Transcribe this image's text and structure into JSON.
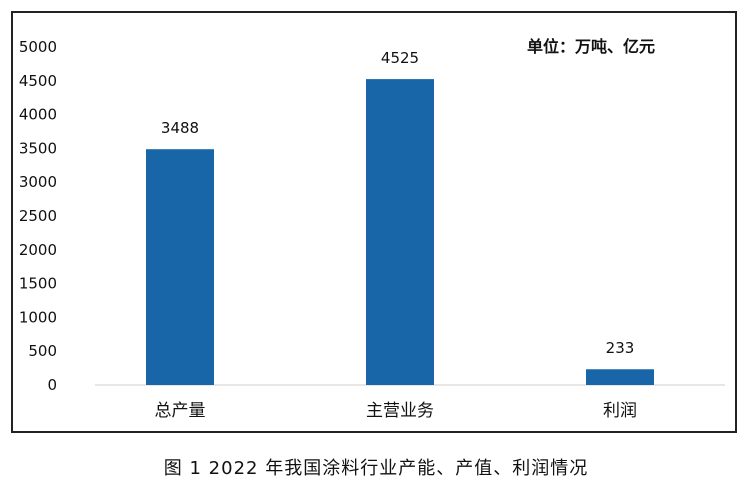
{
  "chart_data": {
    "type": "bar",
    "categories": [
      "总产量",
      "主营业务",
      "利润"
    ],
    "values": [
      3488,
      4525,
      233
    ],
    "data_labels": [
      "3488",
      "4525",
      "233"
    ],
    "ylim": [
      0,
      5000
    ],
    "yticks": [
      0,
      500,
      1000,
      1500,
      2000,
      2500,
      3000,
      3500,
      4000,
      4500,
      5000
    ],
    "unit_note": "单位：万吨、亿元",
    "bar_color": "#1865A7",
    "grid": false,
    "legend": "none"
  },
  "caption": "图 1  2022 年我国涂料行业产能、产值、利润情况"
}
